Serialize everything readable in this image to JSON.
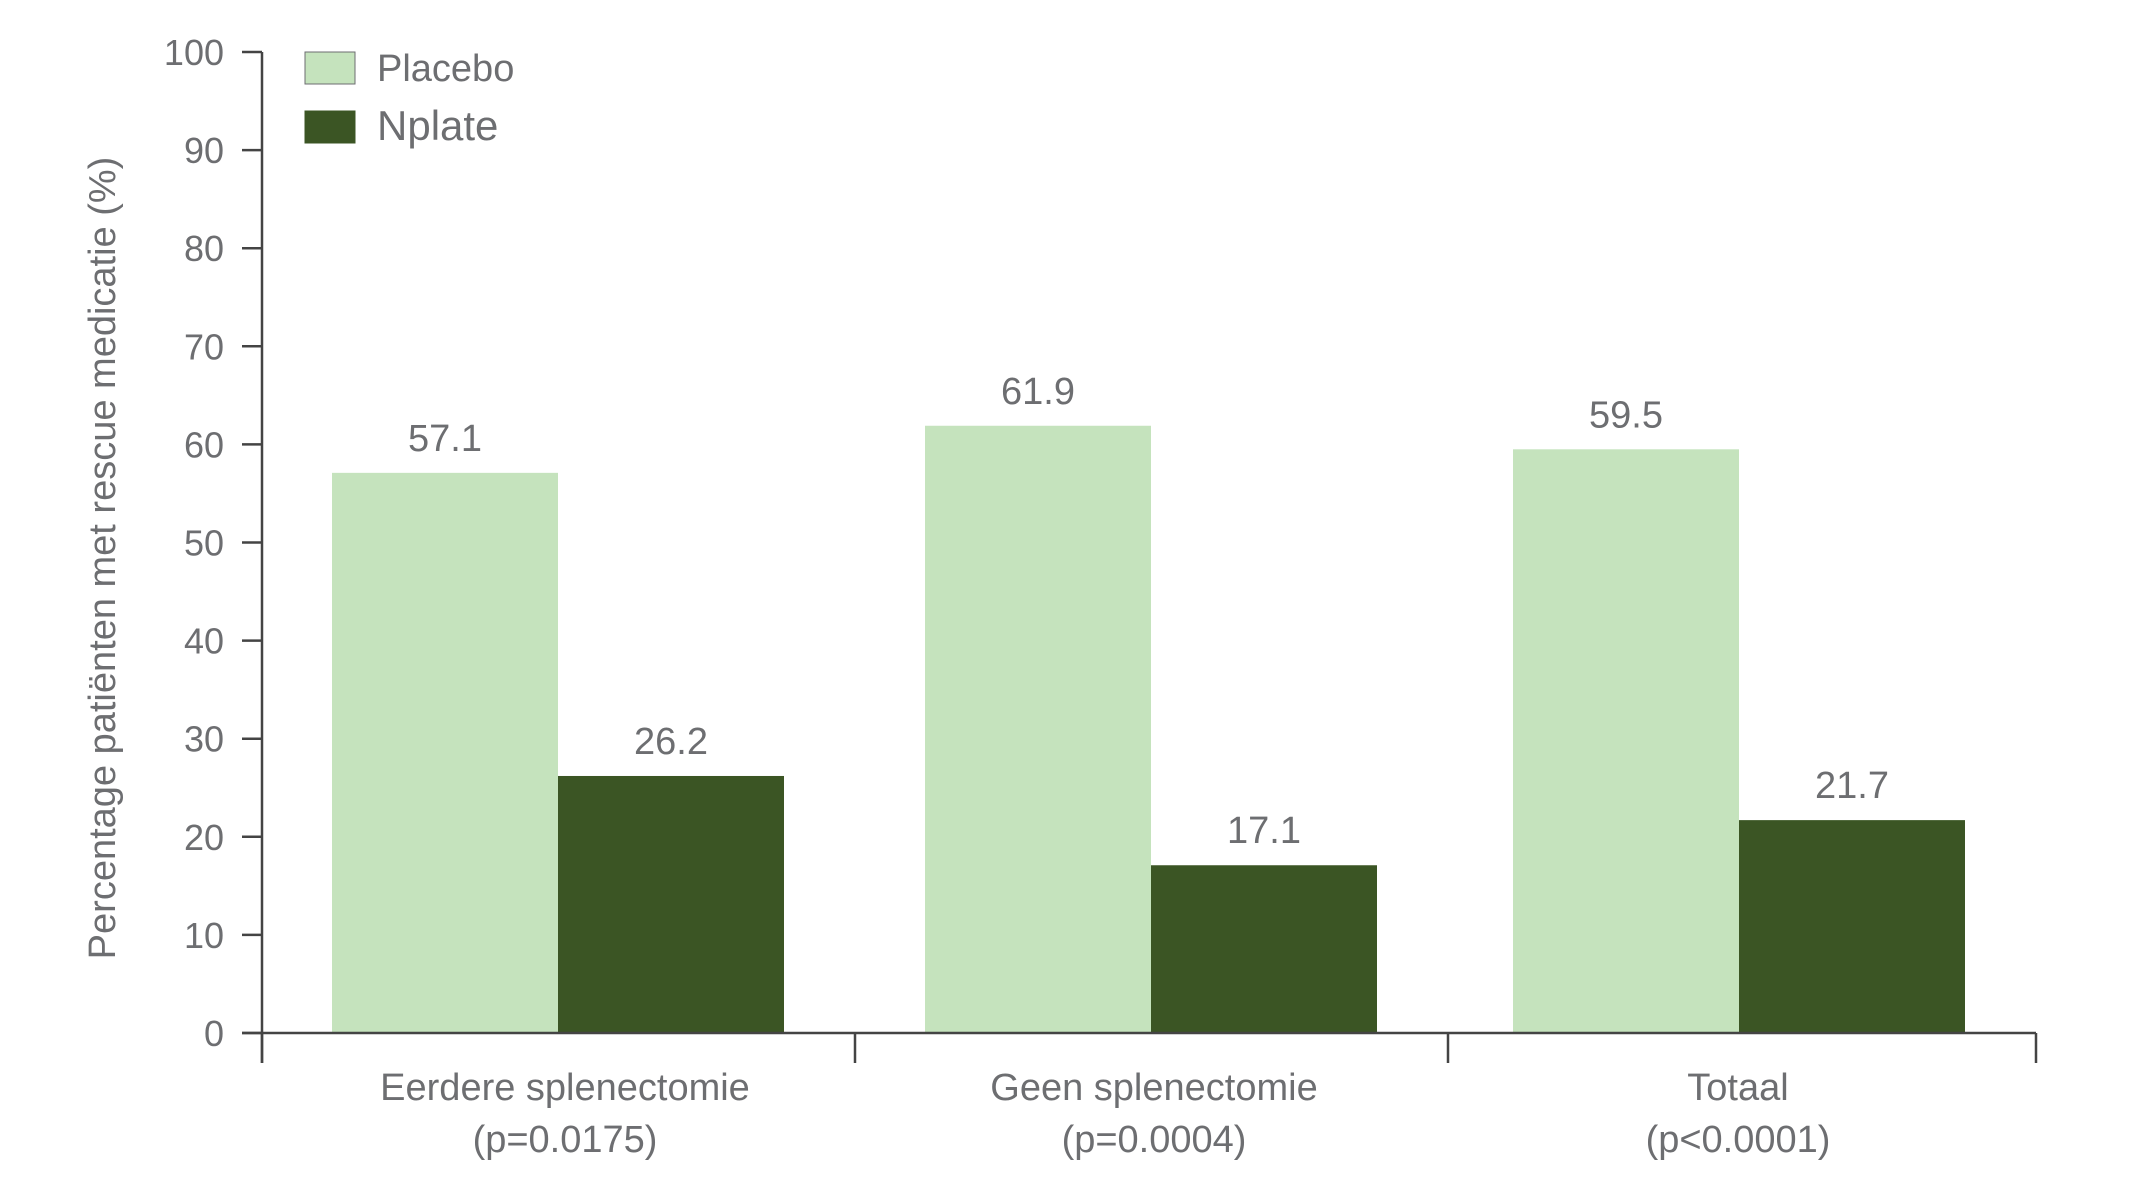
{
  "chart_data": {
    "type": "bar",
    "title": "",
    "ylabel": "Percentage patiënten met rescue medicatie (%)",
    "xlabel": "",
    "ylim": [
      0,
      100
    ],
    "yticks": [
      0,
      10,
      20,
      30,
      40,
      50,
      60,
      70,
      80,
      90,
      100
    ],
    "legend_position": "top-left",
    "categories": [
      {
        "label": "Eerdere splenectomie",
        "sublabel": "(p=0.0175)"
      },
      {
        "label": "Geen splenectomie",
        "sublabel": "(p=0.0004)"
      },
      {
        "label": "Totaal",
        "sublabel": "(p<0.0001)"
      }
    ],
    "series": [
      {
        "name": "Placebo",
        "color": "#c5e3bd",
        "values": [
          57.1,
          61.9,
          59.5
        ],
        "labels": [
          "57.1",
          "61.9",
          "59.5"
        ]
      },
      {
        "name": "Nplate",
        "color": "#3b5524",
        "values": [
          26.2,
          17.1,
          21.7
        ],
        "labels": [
          "26.2",
          "17.1",
          "21.7"
        ]
      }
    ]
  },
  "colors": {
    "axis": "#444444",
    "text": "#6d6e71"
  }
}
